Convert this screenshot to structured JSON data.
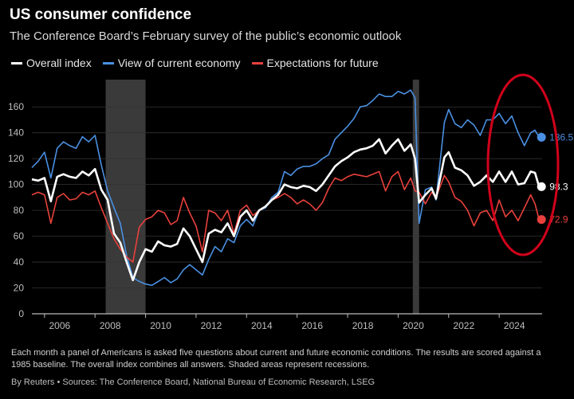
{
  "header": {
    "title": "US consumer confidence",
    "subtitle": "The Conference Board’s February survey of the public’s economic outlook"
  },
  "footer": {
    "note": "Each month a panel of Americans is asked five questions about current and future economic conditions. The results are scored against a 1985 baseline. The overall index combines all answers. Shaded areas represent recessions.",
    "source": "By Reuters • Sources: The Conference Board, National Bureau of Economic Research, LSEG"
  },
  "colors": {
    "overall": "#ffffff",
    "current": "#4a90e2",
    "expectations": "#e8413c",
    "recession": "#3a3a3a",
    "highlight_circle": "#d0021b"
  },
  "chart_data": {
    "type": "line",
    "title": "US consumer confidence",
    "xlim": [
      2005.0,
      2025.2
    ],
    "ylim": [
      0,
      170
    ],
    "xticks": [
      2006,
      2008,
      2010,
      2012,
      2014,
      2016,
      2018,
      2020,
      2022,
      2024
    ],
    "yticks": [
      0,
      20,
      40,
      60,
      80,
      100,
      120,
      140,
      160
    ],
    "grid": true,
    "legend_position": "top-left",
    "recessions": [
      [
        2007.92,
        2009.5
      ],
      [
        2020.08,
        2020.33
      ]
    ],
    "series": [
      {
        "name": "Overall index",
        "key": "overall",
        "end_label": "98.3",
        "points": [
          [
            2005.0,
            104
          ],
          [
            2005.25,
            103
          ],
          [
            2005.5,
            105
          ],
          [
            2005.75,
            87
          ],
          [
            2006.0,
            106
          ],
          [
            2006.25,
            108
          ],
          [
            2006.5,
            106
          ],
          [
            2006.75,
            105
          ],
          [
            2007.0,
            110
          ],
          [
            2007.25,
            107
          ],
          [
            2007.5,
            112
          ],
          [
            2007.75,
            96
          ],
          [
            2008.0,
            88
          ],
          [
            2008.25,
            62
          ],
          [
            2008.5,
            55
          ],
          [
            2008.75,
            40
          ],
          [
            2009.0,
            26
          ],
          [
            2009.25,
            40
          ],
          [
            2009.5,
            50
          ],
          [
            2009.75,
            48
          ],
          [
            2010.0,
            56
          ],
          [
            2010.25,
            53
          ],
          [
            2010.5,
            52
          ],
          [
            2010.75,
            54
          ],
          [
            2011.0,
            66
          ],
          [
            2011.25,
            60
          ],
          [
            2011.5,
            50
          ],
          [
            2011.75,
            40
          ],
          [
            2012.0,
            62
          ],
          [
            2012.25,
            65
          ],
          [
            2012.5,
            63
          ],
          [
            2012.75,
            70
          ],
          [
            2013.0,
            60
          ],
          [
            2013.25,
            75
          ],
          [
            2013.5,
            80
          ],
          [
            2013.75,
            72
          ],
          [
            2014.0,
            80
          ],
          [
            2014.25,
            83
          ],
          [
            2014.5,
            88
          ],
          [
            2014.75,
            92
          ],
          [
            2015.0,
            100
          ],
          [
            2015.25,
            98
          ],
          [
            2015.5,
            97
          ],
          [
            2015.75,
            99
          ],
          [
            2016.0,
            98
          ],
          [
            2016.25,
            95
          ],
          [
            2016.5,
            100
          ],
          [
            2016.75,
            107
          ],
          [
            2017.0,
            114
          ],
          [
            2017.25,
            118
          ],
          [
            2017.5,
            121
          ],
          [
            2017.75,
            125
          ],
          [
            2018.0,
            127
          ],
          [
            2018.25,
            128
          ],
          [
            2018.5,
            130
          ],
          [
            2018.75,
            135
          ],
          [
            2019.0,
            124
          ],
          [
            2019.25,
            130
          ],
          [
            2019.5,
            135
          ],
          [
            2019.75,
            126
          ],
          [
            2020.0,
            131
          ],
          [
            2020.17,
            120
          ],
          [
            2020.33,
            86
          ],
          [
            2020.58,
            92
          ],
          [
            2020.83,
            97
          ],
          [
            2021.0,
            89
          ],
          [
            2021.33,
            121
          ],
          [
            2021.5,
            125
          ],
          [
            2021.75,
            113
          ],
          [
            2022.0,
            111
          ],
          [
            2022.25,
            107
          ],
          [
            2022.5,
            99
          ],
          [
            2022.75,
            102
          ],
          [
            2023.0,
            107
          ],
          [
            2023.25,
            102
          ],
          [
            2023.5,
            110
          ],
          [
            2023.75,
            102
          ],
          [
            2024.0,
            110
          ],
          [
            2024.25,
            100
          ],
          [
            2024.5,
            101
          ],
          [
            2024.75,
            110
          ],
          [
            2024.92,
            109
          ],
          [
            2025.08,
            98.3
          ]
        ]
      },
      {
        "name": "View of current economy",
        "key": "current",
        "end_label": "136.5",
        "points": [
          [
            2005.0,
            113
          ],
          [
            2005.25,
            118
          ],
          [
            2005.5,
            125
          ],
          [
            2005.75,
            105
          ],
          [
            2006.0,
            128
          ],
          [
            2006.25,
            133
          ],
          [
            2006.5,
            130
          ],
          [
            2006.75,
            128
          ],
          [
            2007.0,
            137
          ],
          [
            2007.25,
            133
          ],
          [
            2007.5,
            138
          ],
          [
            2007.75,
            115
          ],
          [
            2008.0,
            95
          ],
          [
            2008.25,
            82
          ],
          [
            2008.5,
            70
          ],
          [
            2008.75,
            45
          ],
          [
            2009.0,
            28
          ],
          [
            2009.25,
            25
          ],
          [
            2009.5,
            23
          ],
          [
            2009.75,
            22
          ],
          [
            2010.0,
            25
          ],
          [
            2010.25,
            28
          ],
          [
            2010.5,
            24
          ],
          [
            2010.75,
            27
          ],
          [
            2011.0,
            34
          ],
          [
            2011.25,
            38
          ],
          [
            2011.5,
            34
          ],
          [
            2011.75,
            30
          ],
          [
            2012.0,
            42
          ],
          [
            2012.25,
            52
          ],
          [
            2012.5,
            48
          ],
          [
            2012.75,
            58
          ],
          [
            2013.0,
            55
          ],
          [
            2013.25,
            68
          ],
          [
            2013.5,
            73
          ],
          [
            2013.75,
            68
          ],
          [
            2014.0,
            80
          ],
          [
            2014.25,
            82
          ],
          [
            2014.5,
            90
          ],
          [
            2014.75,
            94
          ],
          [
            2015.0,
            110
          ],
          [
            2015.25,
            107
          ],
          [
            2015.5,
            112
          ],
          [
            2015.75,
            114
          ],
          [
            2016.0,
            114
          ],
          [
            2016.25,
            116
          ],
          [
            2016.5,
            120
          ],
          [
            2016.75,
            123
          ],
          [
            2017.0,
            135
          ],
          [
            2017.25,
            140
          ],
          [
            2017.5,
            145
          ],
          [
            2017.75,
            151
          ],
          [
            2018.0,
            160
          ],
          [
            2018.25,
            161
          ],
          [
            2018.5,
            165
          ],
          [
            2018.75,
            170
          ],
          [
            2019.0,
            168
          ],
          [
            2019.25,
            168
          ],
          [
            2019.5,
            172
          ],
          [
            2019.75,
            170
          ],
          [
            2020.0,
            173
          ],
          [
            2020.17,
            167
          ],
          [
            2020.33,
            70
          ],
          [
            2020.58,
            96
          ],
          [
            2020.83,
            98
          ],
          [
            2021.0,
            88
          ],
          [
            2021.33,
            148
          ],
          [
            2021.5,
            158
          ],
          [
            2021.75,
            147
          ],
          [
            2022.0,
            144
          ],
          [
            2022.25,
            150
          ],
          [
            2022.5,
            146
          ],
          [
            2022.75,
            138
          ],
          [
            2023.0,
            150
          ],
          [
            2023.25,
            150
          ],
          [
            2023.5,
            155
          ],
          [
            2023.75,
            147
          ],
          [
            2024.0,
            153
          ],
          [
            2024.25,
            140
          ],
          [
            2024.5,
            130
          ],
          [
            2024.75,
            140
          ],
          [
            2024.92,
            142
          ],
          [
            2025.08,
            136.5
          ]
        ]
      },
      {
        "name": "Expectations for future",
        "key": "expectations",
        "end_label": "72.9",
        "points": [
          [
            2005.0,
            92
          ],
          [
            2005.25,
            94
          ],
          [
            2005.5,
            92
          ],
          [
            2005.75,
            70
          ],
          [
            2006.0,
            90
          ],
          [
            2006.25,
            93
          ],
          [
            2006.5,
            88
          ],
          [
            2006.75,
            89
          ],
          [
            2007.0,
            94
          ],
          [
            2007.25,
            92
          ],
          [
            2007.5,
            95
          ],
          [
            2007.75,
            82
          ],
          [
            2008.0,
            70
          ],
          [
            2008.25,
            58
          ],
          [
            2008.5,
            50
          ],
          [
            2008.75,
            44
          ],
          [
            2009.0,
            40
          ],
          [
            2009.25,
            67
          ],
          [
            2009.5,
            73
          ],
          [
            2009.75,
            75
          ],
          [
            2010.0,
            80
          ],
          [
            2010.25,
            78
          ],
          [
            2010.5,
            69
          ],
          [
            2010.75,
            72
          ],
          [
            2011.0,
            90
          ],
          [
            2011.25,
            78
          ],
          [
            2011.5,
            68
          ],
          [
            2011.75,
            48
          ],
          [
            2012.0,
            80
          ],
          [
            2012.25,
            78
          ],
          [
            2012.5,
            72
          ],
          [
            2012.75,
            80
          ],
          [
            2013.0,
            62
          ],
          [
            2013.25,
            80
          ],
          [
            2013.5,
            84
          ],
          [
            2013.75,
            76
          ],
          [
            2014.0,
            80
          ],
          [
            2014.25,
            83
          ],
          [
            2014.5,
            88
          ],
          [
            2014.75,
            90
          ],
          [
            2015.0,
            93
          ],
          [
            2015.25,
            90
          ],
          [
            2015.5,
            85
          ],
          [
            2015.75,
            88
          ],
          [
            2016.0,
            85
          ],
          [
            2016.25,
            80
          ],
          [
            2016.5,
            86
          ],
          [
            2016.75,
            97
          ],
          [
            2017.0,
            105
          ],
          [
            2017.25,
            103
          ],
          [
            2017.5,
            106
          ],
          [
            2017.75,
            108
          ],
          [
            2018.0,
            107
          ],
          [
            2018.25,
            106
          ],
          [
            2018.5,
            108
          ],
          [
            2018.75,
            110
          ],
          [
            2019.0,
            95
          ],
          [
            2019.25,
            106
          ],
          [
            2019.5,
            110
          ],
          [
            2019.75,
            96
          ],
          [
            2020.0,
            105
          ],
          [
            2020.17,
            95
          ],
          [
            2020.33,
            94
          ],
          [
            2020.58,
            85
          ],
          [
            2020.83,
            94
          ],
          [
            2021.0,
            90
          ],
          [
            2021.33,
            107
          ],
          [
            2021.5,
            102
          ],
          [
            2021.75,
            90
          ],
          [
            2022.0,
            87
          ],
          [
            2022.25,
            80
          ],
          [
            2022.5,
            68
          ],
          [
            2022.75,
            78
          ],
          [
            2023.0,
            80
          ],
          [
            2023.25,
            72
          ],
          [
            2023.5,
            88
          ],
          [
            2023.75,
            75
          ],
          [
            2024.0,
            80
          ],
          [
            2024.25,
            72
          ],
          [
            2024.5,
            82
          ],
          [
            2024.75,
            92
          ],
          [
            2024.92,
            85
          ],
          [
            2025.08,
            72.9
          ]
        ]
      }
    ]
  }
}
